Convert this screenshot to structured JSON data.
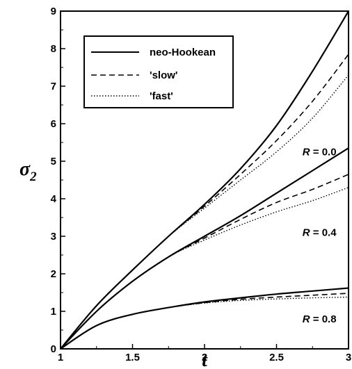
{
  "chart_data": {
    "type": "line",
    "title": "",
    "xlabel": "t",
    "ylabel_symbol": "σ",
    "ylabel_subscript": "2",
    "xlim": [
      1,
      3
    ],
    "ylim": [
      0,
      9
    ],
    "xticks": [
      1,
      1.5,
      2,
      2.5,
      3
    ],
    "xtick_labels": [
      "1",
      "1.5",
      "2",
      "2.5",
      "3"
    ],
    "yticks": [
      0,
      1,
      2,
      3,
      4,
      5,
      6,
      7,
      8,
      9
    ],
    "ytick_labels": [
      "0",
      "1",
      "2",
      "3",
      "4",
      "5",
      "6",
      "7",
      "8",
      "9"
    ],
    "grid": false,
    "legend_position": "top-left",
    "legend": [
      {
        "label": "neo-Hookean",
        "style": "solid"
      },
      {
        "label": "'slow'",
        "style": "dashed"
      },
      {
        "label": "'fast'",
        "style": "dotted"
      }
    ],
    "x": [
      1,
      1.25,
      1.5,
      1.75,
      2,
      2.25,
      2.5,
      2.75,
      3
    ],
    "groups": [
      {
        "label_var": "R",
        "label_value": "0.0",
        "series": [
          {
            "style": "solid",
            "values": [
              0,
              1.15,
              2.1,
              3.0,
              3.85,
              4.8,
              5.95,
              7.4,
              9.0
            ]
          },
          {
            "style": "dashed",
            "values": [
              0,
              1.15,
              2.1,
              3.0,
              3.8,
              4.65,
              5.55,
              6.6,
              7.85
            ]
          },
          {
            "style": "dotted",
            "values": [
              0,
              1.15,
              2.1,
              3.0,
              3.75,
              4.5,
              5.25,
              6.15,
              7.3
            ]
          }
        ]
      },
      {
        "label_var": "R",
        "label_value": "0.4",
        "series": [
          {
            "style": "solid",
            "values": [
              0,
              1.0,
              1.8,
              2.45,
              3.0,
              3.55,
              4.15,
              4.75,
              5.35
            ]
          },
          {
            "style": "dashed",
            "values": [
              0,
              1.0,
              1.8,
              2.45,
              2.95,
              3.45,
              3.9,
              4.25,
              4.65
            ]
          },
          {
            "style": "dotted",
            "values": [
              0,
              1.0,
              1.8,
              2.45,
              2.9,
              3.3,
              3.65,
              3.95,
              4.3
            ]
          }
        ]
      },
      {
        "label_var": "R",
        "label_value": "0.8",
        "series": [
          {
            "style": "solid",
            "values": [
              0,
              0.62,
              0.92,
              1.1,
              1.25,
              1.36,
              1.46,
              1.54,
              1.62
            ]
          },
          {
            "style": "dashed",
            "values": [
              0,
              0.62,
              0.92,
              1.1,
              1.23,
              1.32,
              1.38,
              1.43,
              1.48
            ]
          },
          {
            "style": "dotted",
            "values": [
              0,
              0.62,
              0.92,
              1.1,
              1.22,
              1.29,
              1.33,
              1.36,
              1.38
            ]
          }
        ]
      }
    ]
  }
}
